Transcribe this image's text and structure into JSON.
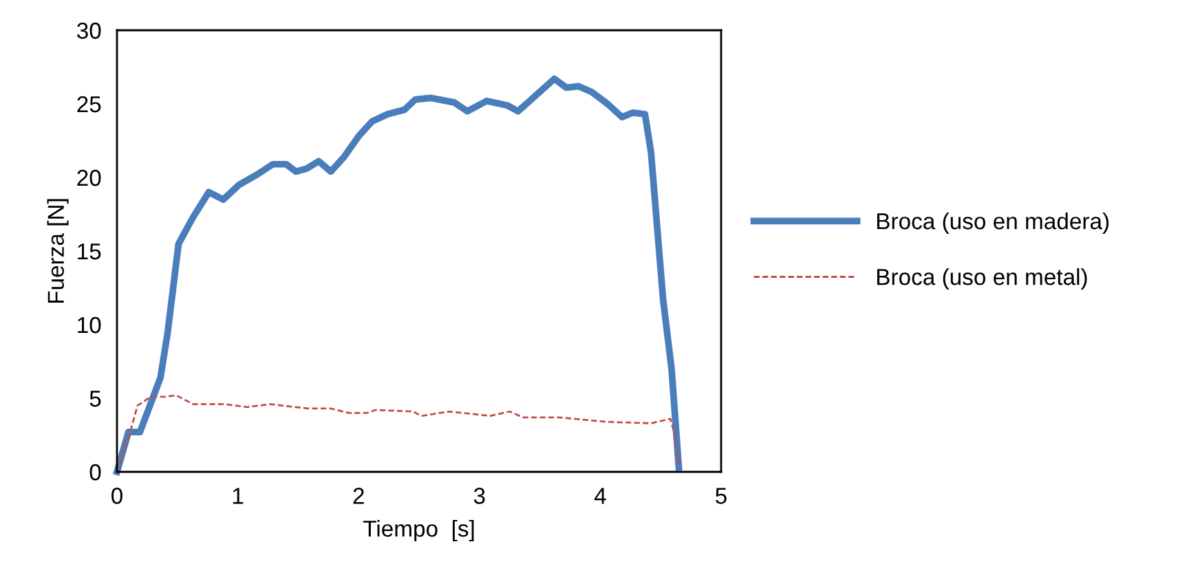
{
  "chart_data": {
    "type": "line",
    "xlabel": "Tiempo  [s]",
    "ylabel": "Fuerza [N]",
    "xlim": [
      0,
      5
    ],
    "ylim": [
      0,
      30
    ],
    "xticks": [
      0,
      1,
      2,
      3,
      4,
      5
    ],
    "yticks": [
      0,
      5,
      10,
      15,
      20,
      25,
      30
    ],
    "grid": false,
    "legend": "right",
    "marker": "none",
    "series": [
      {
        "name": "Broca (uso en madera)",
        "color": "#4a7ebb",
        "line_style": "solid",
        "x": [
          0,
          0.095,
          0.19,
          0.36,
          0.42,
          0.51,
          0.63,
          0.76,
          0.88,
          1.01,
          1.16,
          1.29,
          1.4,
          1.48,
          1.57,
          1.67,
          1.77,
          1.88,
          2.0,
          2.11,
          2.24,
          2.38,
          2.47,
          2.6,
          2.79,
          2.9,
          3.06,
          3.23,
          3.32,
          3.47,
          3.62,
          3.72,
          3.82,
          3.93,
          4.06,
          4.18,
          4.27,
          4.37,
          4.42,
          4.52,
          4.59,
          4.65
        ],
        "values": [
          0,
          2.7,
          2.7,
          6.4,
          9.5,
          15.5,
          17.3,
          19.0,
          18.5,
          19.5,
          20.2,
          20.9,
          20.9,
          20.4,
          20.6,
          21.1,
          20.4,
          21.4,
          22.8,
          23.8,
          24.3,
          24.6,
          25.3,
          25.4,
          25.1,
          24.5,
          25.2,
          24.9,
          24.5,
          25.6,
          26.7,
          26.1,
          26.2,
          25.8,
          25.0,
          24.1,
          24.4,
          24.3,
          21.7,
          11.7,
          7.0,
          0.3
        ]
      },
      {
        "name": "Broca (uso en metal)",
        "color": "#c0504d",
        "line_style": "dashed",
        "x": [
          0,
          0.095,
          0.17,
          0.28,
          0.4,
          0.49,
          0.63,
          0.89,
          1.08,
          1.27,
          1.58,
          1.77,
          1.92,
          2.07,
          2.14,
          2.45,
          2.52,
          2.75,
          3.09,
          3.25,
          3.36,
          3.66,
          4.04,
          4.42,
          4.58,
          4.61,
          4.65
        ],
        "values": [
          0,
          2.3,
          4.5,
          5.1,
          5.1,
          5.2,
          4.6,
          4.6,
          4.4,
          4.6,
          4.3,
          4.3,
          4.0,
          4.0,
          4.2,
          4.1,
          3.8,
          4.1,
          3.8,
          4.1,
          3.7,
          3.7,
          3.4,
          3.3,
          3.6,
          2.7,
          0.3
        ]
      }
    ]
  }
}
